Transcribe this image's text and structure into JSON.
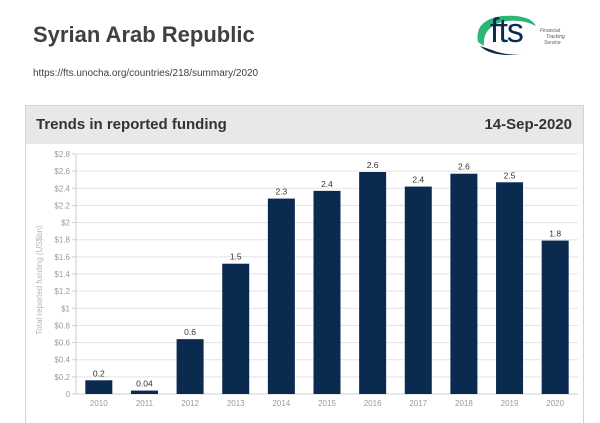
{
  "header": {
    "title": "Syrian Arab Republic",
    "url": "https://fts.unocha.org/countries/218/summary/2020"
  },
  "logo": {
    "text": "fts",
    "tagline": [
      "Financial",
      "Tracking",
      "Service"
    ]
  },
  "card": {
    "title": "Trends in reported funding",
    "date": "14-Sep-2020"
  },
  "colors": {
    "bar": "#0b2a50",
    "grid": "#e3e3e3",
    "axis_text": "#9a9a9a",
    "label_text": "#333333",
    "logo_green": "#2bb673",
    "logo_navy": "#0b2a50"
  },
  "chart_data": {
    "type": "bar",
    "title": "Trends in reported funding",
    "xlabel": "",
    "ylabel": "Total reported funding (US$bn)",
    "categories": [
      "2010",
      "2011",
      "2012",
      "2013",
      "2014",
      "2015",
      "2016",
      "2017",
      "2018",
      "2019",
      "2020"
    ],
    "values": [
      0.16,
      0.04,
      0.64,
      1.52,
      2.28,
      2.37,
      2.59,
      2.42,
      2.57,
      2.47,
      1.79
    ],
    "data_labels": [
      "0.2",
      "0.04",
      "0.6",
      "1.5",
      "2.3",
      "2.4",
      "2.6",
      "2.4",
      "2.6",
      "2.5",
      "1.8"
    ],
    "ylim": [
      0,
      2.8
    ],
    "yticks": [
      0,
      0.2,
      0.4,
      0.6,
      0.8,
      1,
      1.2,
      1.4,
      1.6,
      1.8,
      2,
      2.2,
      2.4,
      2.6,
      2.8
    ],
    "ytick_labels": [
      "0",
      "$0.2",
      "$0.4",
      "$0.6",
      "$0.8",
      "$1",
      "$1.2",
      "$1.4",
      "$1.6",
      "$1.8",
      "$2",
      "$2.2",
      "$2.4",
      "$2.6",
      "$2.8"
    ],
    "grid": true
  }
}
